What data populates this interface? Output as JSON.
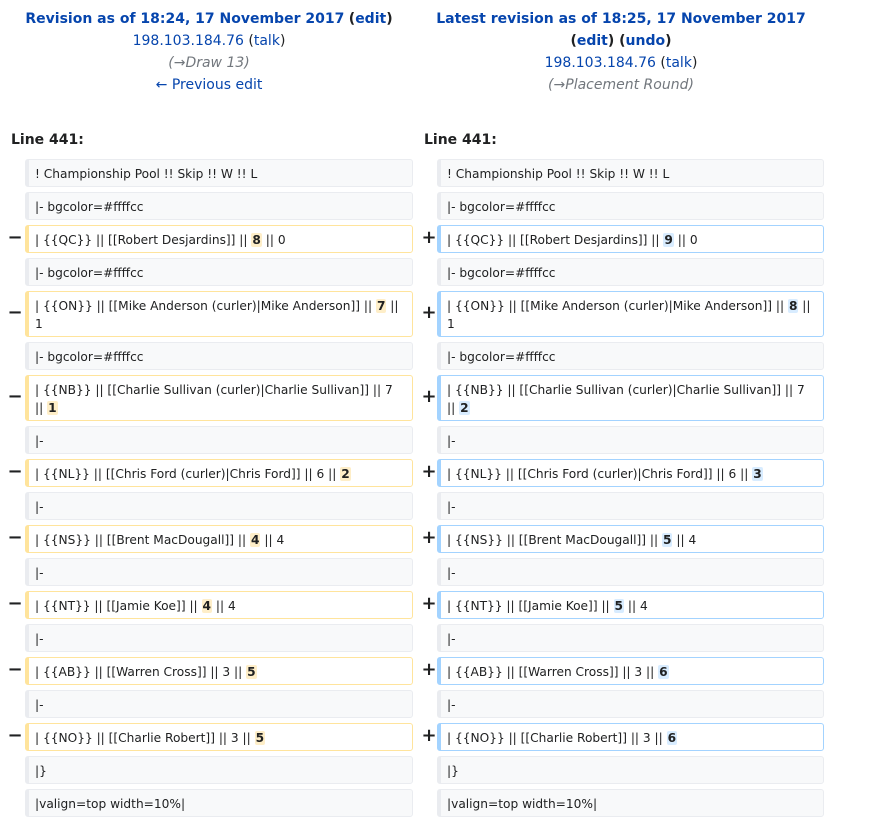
{
  "left_header": {
    "title": "Revision as of 18:24, 17 November 2017",
    "edit": "edit",
    "user": "198.103.184.76",
    "talk": "talk",
    "comment_arrow": "→",
    "comment_section": "Draw 13",
    "prev_link": "← Previous edit"
  },
  "right_header": {
    "title": "Latest revision as of 18:25, 17 November 2017",
    "edit": "edit",
    "undo": "undo",
    "user": "198.103.184.76",
    "talk": "talk",
    "comment_arrow": "→",
    "comment_section": "Placement Round"
  },
  "line_label_left": "Line 441:",
  "line_label_right": "Line 441:",
  "markers": {
    "minus": "−",
    "plus": "+"
  },
  "rows": [
    {
      "type": "context",
      "text": "! Championship Pool !! Skip !! W !! L"
    },
    {
      "type": "context",
      "text": "|- bgcolor=#ffffcc"
    },
    {
      "type": "change",
      "old_pre": "| {{QC}} || [[Robert Desjardins]] || ",
      "old_hl": "8",
      "old_post": " || 0",
      "new_pre": "| {{QC}} || [[Robert Desjardins]] || ",
      "new_hl": "9",
      "new_post": " || 0"
    },
    {
      "type": "context",
      "text": "|- bgcolor=#ffffcc"
    },
    {
      "type": "change",
      "old_pre": "| {{ON}} || [[Mike Anderson (curler)|Mike Anderson]] || ",
      "old_hl": "7",
      "old_post": " || 1",
      "new_pre": "| {{ON}} || [[Mike Anderson (curler)|Mike Anderson]] || ",
      "new_hl": "8",
      "new_post": " || 1"
    },
    {
      "type": "context",
      "text": "|- bgcolor=#ffffcc"
    },
    {
      "type": "change",
      "old_pre": "| {{NB}} || [[Charlie Sullivan (curler)|Charlie Sullivan]] || 7 || ",
      "old_hl": "1",
      "old_post": "",
      "new_pre": "| {{NB}} || [[Charlie Sullivan (curler)|Charlie Sullivan]] || 7 || ",
      "new_hl": "2",
      "new_post": ""
    },
    {
      "type": "context",
      "text": "|-"
    },
    {
      "type": "change",
      "old_pre": "| {{NL}} || [[Chris Ford (curler)|Chris Ford]] || 6 || ",
      "old_hl": "2",
      "old_post": "",
      "new_pre": "| {{NL}} || [[Chris Ford (curler)|Chris Ford]] || 6 || ",
      "new_hl": "3",
      "new_post": ""
    },
    {
      "type": "context",
      "text": "|-"
    },
    {
      "type": "change",
      "old_pre": "| {{NS}} || [[Brent MacDougall]] || ",
      "old_hl": "4",
      "old_post": " || 4",
      "new_pre": "| {{NS}} || [[Brent MacDougall]] || ",
      "new_hl": "5",
      "new_post": " || 4"
    },
    {
      "type": "context",
      "text": "|-"
    },
    {
      "type": "change",
      "old_pre": "| {{NT}} || [[Jamie Koe]] || ",
      "old_hl": "4",
      "old_post": " || 4",
      "new_pre": "| {{NT}} || [[Jamie Koe]] || ",
      "new_hl": "5",
      "new_post": " || 4"
    },
    {
      "type": "context",
      "text": "|-"
    },
    {
      "type": "change",
      "old_pre": "| {{AB}} || [[Warren Cross]] || 3 || ",
      "old_hl": "5",
      "old_post": "",
      "new_pre": "| {{AB}} || [[Warren Cross]] || 3 || ",
      "new_hl": "6",
      "new_post": ""
    },
    {
      "type": "context",
      "text": "|-"
    },
    {
      "type": "change",
      "old_pre": "| {{NO}} || [[Charlie Robert]] || 3 || ",
      "old_hl": "5",
      "old_post": "",
      "new_pre": "| {{NO}} || [[Charlie Robert]] || 3 || ",
      "new_hl": "6",
      "new_post": ""
    },
    {
      "type": "context",
      "text": "|}"
    },
    {
      "type": "context",
      "text": "|valign=top width=10%|"
    }
  ],
  "colors": {
    "link": "#0645ad",
    "deleted_border": "#ffe49c",
    "added_border": "#a3d3ff",
    "deleted_highlight": "#feeec8",
    "added_highlight": "#d8ecff"
  }
}
